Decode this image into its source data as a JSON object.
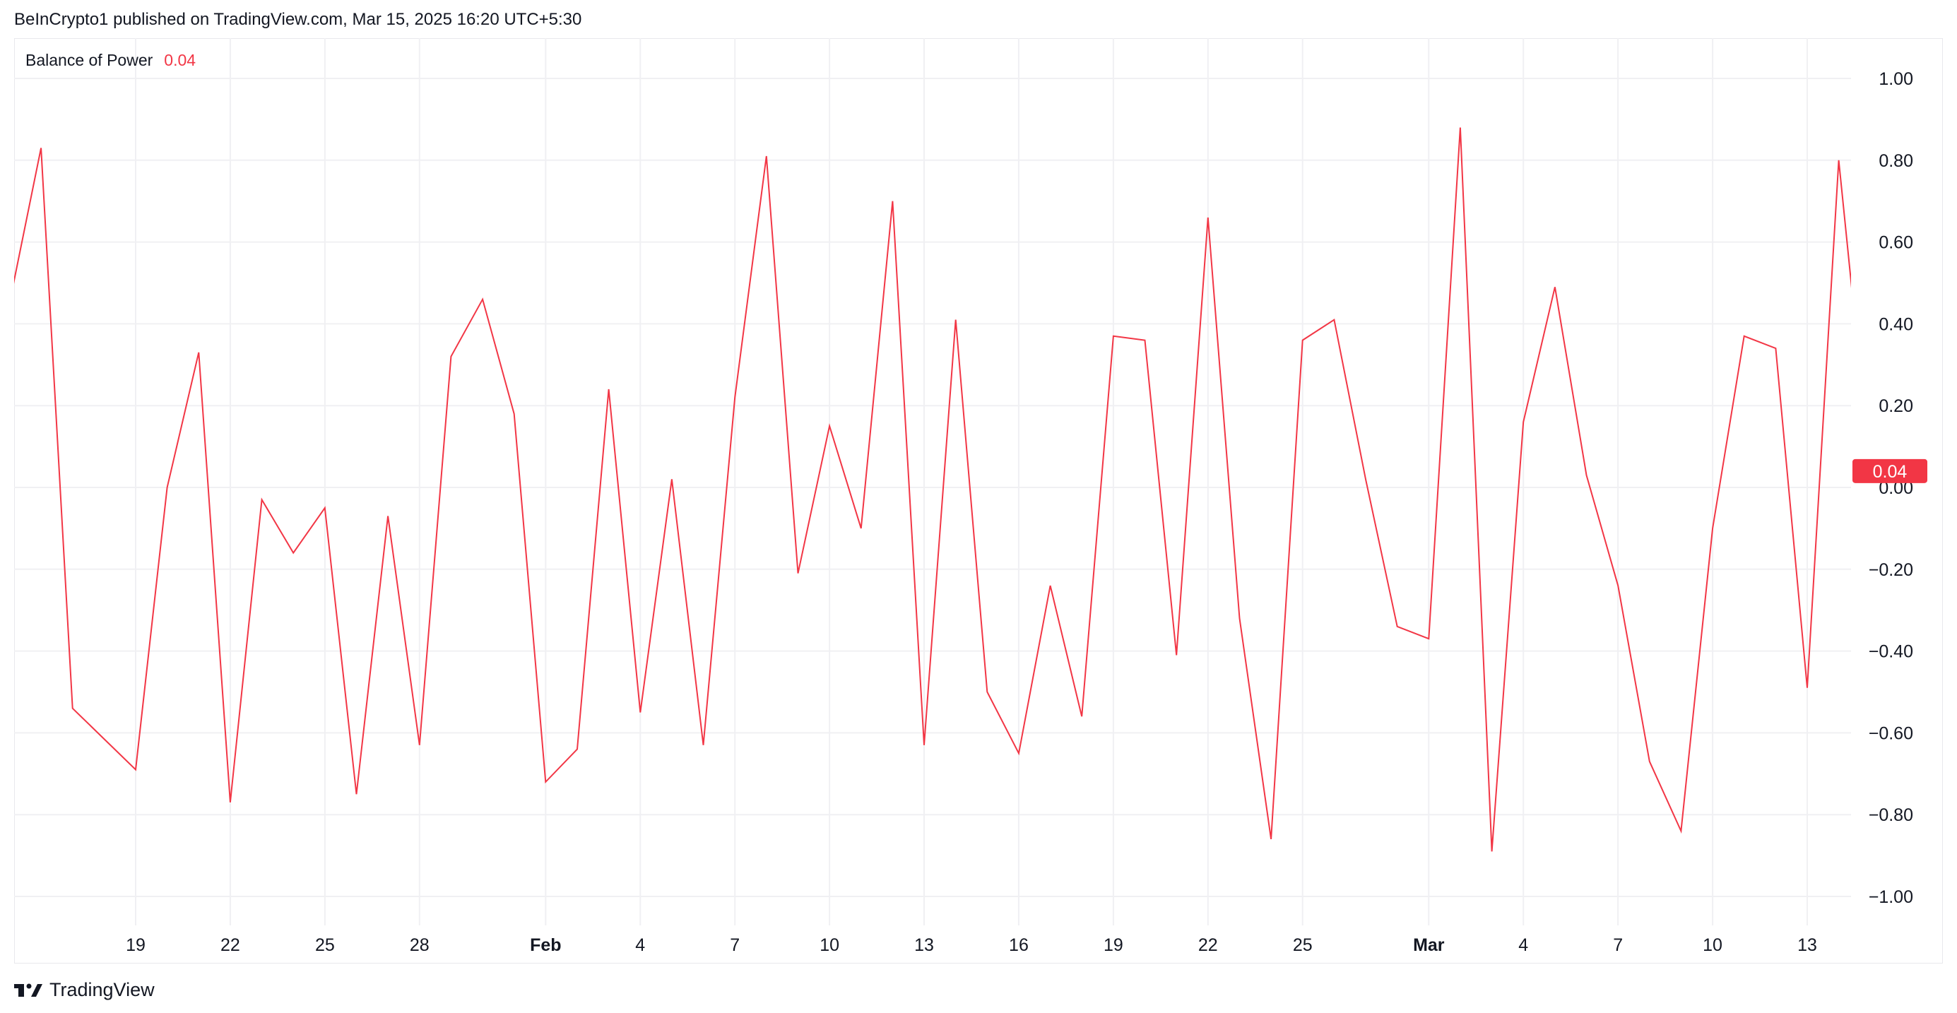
{
  "header": {
    "publisher_text": "BeInCrypto1 published on TradingView.com, Mar 15, 2025 16:20 UTC+5:30"
  },
  "legend": {
    "indicator_name": "Balance of Power",
    "last_value": "0.04"
  },
  "footer": {
    "brand": "TradingView",
    "logo_icon": "tradingview-logo-icon"
  },
  "colors": {
    "line": "#f23645",
    "grid": "#f0f0f3",
    "text": "#131722",
    "badge_bg": "#f23645",
    "badge_text": "#ffffff"
  },
  "chart_data": {
    "type": "line",
    "title": "Balance of Power",
    "y_ticks": [
      "1.00",
      "0.80",
      "0.60",
      "0.40",
      "0.20",
      "0.00",
      "−0.20",
      "−0.40",
      "−0.60",
      "−0.80",
      "−1.00"
    ],
    "y_tick_values": [
      1.0,
      0.8,
      0.6,
      0.4,
      0.2,
      0.0,
      -0.2,
      -0.4,
      -0.6,
      -0.8,
      -1.0
    ],
    "ylim": [
      -1.1,
      1.1
    ],
    "x_ticks": [
      {
        "label": "19",
        "date": "2025-01-19",
        "bold": false
      },
      {
        "label": "22",
        "date": "2025-01-22",
        "bold": false
      },
      {
        "label": "25",
        "date": "2025-01-25",
        "bold": false
      },
      {
        "label": "28",
        "date": "2025-01-28",
        "bold": false
      },
      {
        "label": "Feb",
        "date": "2025-02-01",
        "bold": true
      },
      {
        "label": "4",
        "date": "2025-02-04",
        "bold": false
      },
      {
        "label": "7",
        "date": "2025-02-07",
        "bold": false
      },
      {
        "label": "10",
        "date": "2025-02-10",
        "bold": false
      },
      {
        "label": "13",
        "date": "2025-02-13",
        "bold": false
      },
      {
        "label": "16",
        "date": "2025-02-16",
        "bold": false
      },
      {
        "label": "19",
        "date": "2025-02-19",
        "bold": false
      },
      {
        "label": "22",
        "date": "2025-02-22",
        "bold": false
      },
      {
        "label": "25",
        "date": "2025-02-25",
        "bold": false
      },
      {
        "label": "Mar",
        "date": "2025-03-01",
        "bold": true
      },
      {
        "label": "4",
        "date": "2025-03-04",
        "bold": false
      },
      {
        "label": "7",
        "date": "2025-03-07",
        "bold": false
      },
      {
        "label": "10",
        "date": "2025-03-10",
        "bold": false
      },
      {
        "label": "13",
        "date": "2025-03-13",
        "bold": false
      }
    ],
    "series": [
      {
        "color": "#f23645",
        "points": [
          {
            "x": "2025-01-15",
            "y": 0.45
          },
          {
            "x": "2025-01-16",
            "y": 0.83
          },
          {
            "x": "2025-01-17",
            "y": -0.54
          },
          {
            "x": "2025-01-19",
            "y": -0.69
          },
          {
            "x": "2025-01-20",
            "y": 0.0
          },
          {
            "x": "2025-01-21",
            "y": 0.33
          },
          {
            "x": "2025-01-22",
            "y": -0.77
          },
          {
            "x": "2025-01-23",
            "y": -0.03
          },
          {
            "x": "2025-01-24",
            "y": -0.16
          },
          {
            "x": "2025-01-25",
            "y": -0.05
          },
          {
            "x": "2025-01-26",
            "y": -0.75
          },
          {
            "x": "2025-01-27",
            "y": -0.07
          },
          {
            "x": "2025-01-28",
            "y": -0.63
          },
          {
            "x": "2025-01-29",
            "y": 0.32
          },
          {
            "x": "2025-01-30",
            "y": 0.46
          },
          {
            "x": "2025-01-31",
            "y": 0.18
          },
          {
            "x": "2025-02-01",
            "y": -0.72
          },
          {
            "x": "2025-02-02",
            "y": -0.64
          },
          {
            "x": "2025-02-03",
            "y": 0.24
          },
          {
            "x": "2025-02-04",
            "y": -0.55
          },
          {
            "x": "2025-02-05",
            "y": 0.02
          },
          {
            "x": "2025-02-06",
            "y": -0.63
          },
          {
            "x": "2025-02-07",
            "y": 0.22
          },
          {
            "x": "2025-02-08",
            "y": 0.81
          },
          {
            "x": "2025-02-09",
            "y": -0.21
          },
          {
            "x": "2025-02-10",
            "y": 0.15
          },
          {
            "x": "2025-02-11",
            "y": -0.1
          },
          {
            "x": "2025-02-12",
            "y": 0.7
          },
          {
            "x": "2025-02-13",
            "y": -0.63
          },
          {
            "x": "2025-02-14",
            "y": 0.41
          },
          {
            "x": "2025-02-15",
            "y": -0.5
          },
          {
            "x": "2025-02-16",
            "y": -0.65
          },
          {
            "x": "2025-02-17",
            "y": -0.24
          },
          {
            "x": "2025-02-18",
            "y": -0.56
          },
          {
            "x": "2025-02-19",
            "y": 0.37
          },
          {
            "x": "2025-02-20",
            "y": 0.36
          },
          {
            "x": "2025-02-21",
            "y": -0.41
          },
          {
            "x": "2025-02-22",
            "y": 0.66
          },
          {
            "x": "2025-02-23",
            "y": -0.32
          },
          {
            "x": "2025-02-24",
            "y": -0.86
          },
          {
            "x": "2025-02-25",
            "y": 0.36
          },
          {
            "x": "2025-02-26",
            "y": 0.41
          },
          {
            "x": "2025-02-27",
            "y": 0.02
          },
          {
            "x": "2025-02-28",
            "y": -0.34
          },
          {
            "x": "2025-03-01",
            "y": -0.37
          },
          {
            "x": "2025-03-02",
            "y": 0.88
          },
          {
            "x": "2025-03-03",
            "y": -0.89
          },
          {
            "x": "2025-03-04",
            "y": 0.16
          },
          {
            "x": "2025-03-05",
            "y": 0.49
          },
          {
            "x": "2025-03-06",
            "y": 0.03
          },
          {
            "x": "2025-03-07",
            "y": -0.24
          },
          {
            "x": "2025-03-08",
            "y": -0.67
          },
          {
            "x": "2025-03-09",
            "y": -0.84
          },
          {
            "x": "2025-03-10",
            "y": -0.1
          },
          {
            "x": "2025-03-11",
            "y": 0.37
          },
          {
            "x": "2025-03-12",
            "y": 0.34
          },
          {
            "x": "2025-03-13",
            "y": -0.49
          },
          {
            "x": "2025-03-14",
            "y": 0.8
          },
          {
            "x": "2025-03-15",
            "y": 0.04
          }
        ]
      }
    ],
    "grid": true,
    "last_value_label": "0.04"
  }
}
